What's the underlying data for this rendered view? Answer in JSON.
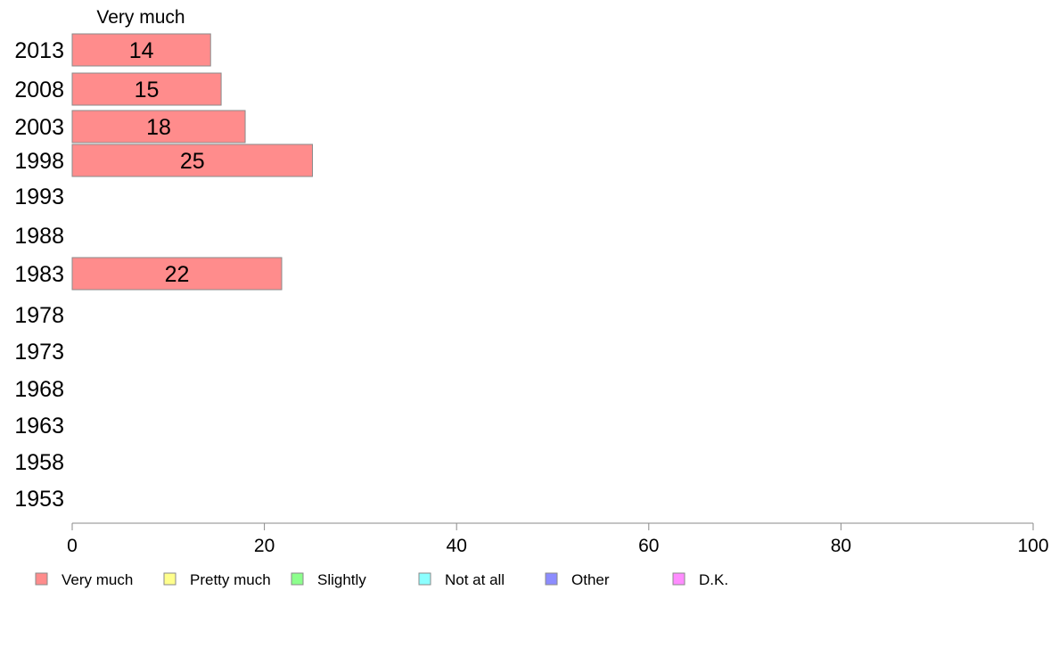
{
  "chart_data": {
    "type": "bar",
    "orientation": "horizontal",
    "stacked": true,
    "categories": [
      "2013",
      "2008",
      "2003",
      "1998",
      "1993",
      "1988",
      "1983",
      "1978",
      "1973",
      "1968",
      "1963",
      "1958",
      "1953"
    ],
    "series": [
      {
        "name": "Very much",
        "color": "#ff8c8c",
        "values": [
          14.4,
          15.5,
          18.0,
          25.0,
          null,
          null,
          21.8,
          null,
          null,
          null,
          null,
          null,
          null
        ],
        "labels": [
          "14",
          "15",
          "18",
          "25",
          "",
          "",
          "22",
          "",
          "",
          "",
          "",
          "",
          ""
        ]
      },
      {
        "name": "Pretty much",
        "color": "#ffff8c",
        "values": [
          null,
          null,
          null,
          null,
          null,
          null,
          null,
          null,
          null,
          null,
          null,
          null,
          null
        ]
      },
      {
        "name": "Slightly",
        "color": "#8cff8c",
        "values": [
          null,
          null,
          null,
          null,
          null,
          null,
          null,
          null,
          null,
          null,
          null,
          null,
          null
        ]
      },
      {
        "name": "Not at all",
        "color": "#8cffff",
        "values": [
          null,
          null,
          null,
          null,
          null,
          null,
          null,
          null,
          null,
          null,
          null,
          null,
          null
        ]
      },
      {
        "name": "Other",
        "color": "#8c8cff",
        "values": [
          null,
          null,
          null,
          null,
          null,
          null,
          null,
          null,
          null,
          null,
          null,
          null,
          null
        ]
      },
      {
        "name": "D.K.",
        "color": "#ff8cff",
        "values": [
          null,
          null,
          null,
          null,
          null,
          null,
          null,
          null,
          null,
          null,
          null,
          null,
          null
        ]
      }
    ],
    "series_title": "Very much",
    "xlim": [
      0,
      100
    ],
    "xticks": [
      0,
      20,
      40,
      60,
      80,
      100
    ],
    "grid": false,
    "legend_position": "bottom"
  }
}
